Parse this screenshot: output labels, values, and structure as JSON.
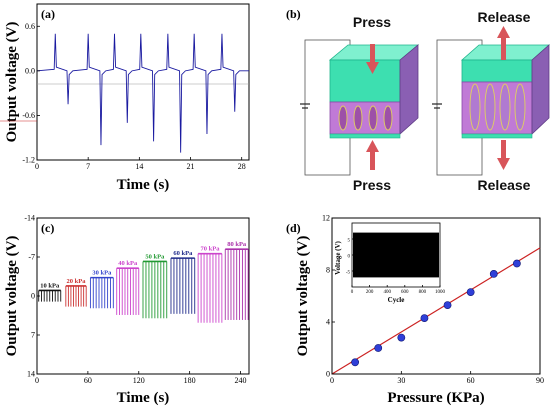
{
  "colors": {
    "trace": "#1a1aa0",
    "fit_line": "#cc2222",
    "marker": "#2f3fd8",
    "device_top": "#3ddfb0",
    "device_core": "#c07ad6",
    "arrow": "#d8555a"
  },
  "chart_data": [
    {
      "panel": "(a)",
      "type": "line",
      "ylabel": "Output voltage (V)",
      "xlabel": "Time (s)",
      "xlim": [
        0,
        29
      ],
      "ylim": [
        -1.2,
        0.9
      ],
      "xticks": [
        "0",
        "7",
        "14",
        "21",
        "28"
      ],
      "xtick_values": [
        0,
        7,
        14,
        21,
        28
      ],
      "yticks": [
        "0.6",
        "0.0",
        "-0.6",
        "-1.2"
      ],
      "ytick_values": [
        0.6,
        0.0,
        -0.6,
        -1.2
      ],
      "pulse_times": [
        2.5,
        7.0,
        10.6,
        14.2,
        17.9,
        21.5,
        25.3
      ],
      "positive_peaks": [
        0.5,
        0.5,
        0.5,
        0.5,
        0.5,
        0.5,
        0.5
      ],
      "negative_peaks": [
        -0.45,
        -1.0,
        -0.7,
        -0.95,
        -1.1,
        -0.85,
        -0.55
      ]
    },
    {
      "panel": "(c)",
      "type": "bar",
      "ylabel": "Output voltage (V)",
      "xlabel": "Time (s)",
      "xlim": [
        0,
        250
      ],
      "ylim": [
        14,
        -14
      ],
      "xticks": [
        "0",
        "60",
        "120",
        "180",
        "240"
      ],
      "xtick_values": [
        0,
        60,
        120,
        180,
        240
      ],
      "yticks": [
        "-14",
        "-7",
        "0",
        "7",
        "14"
      ],
      "ytick_values": [
        -14,
        -7,
        0,
        7,
        14
      ],
      "series": [
        {
          "name": "10 kPa",
          "t_start": 2,
          "t_end": 28,
          "peak": -1.0,
          "trough": 1.0,
          "color": "#111111"
        },
        {
          "name": "20 kPa",
          "t_start": 34,
          "t_end": 58,
          "peak": -1.8,
          "trough": 1.9,
          "color": "#cc3333"
        },
        {
          "name": "30 kPa",
          "t_start": 63,
          "t_end": 90,
          "peak": -3.3,
          "trough": 2.2,
          "color": "#3344cc"
        },
        {
          "name": "40 kPa",
          "t_start": 94,
          "t_end": 120,
          "peak": -5.0,
          "trough": 3.4,
          "color": "#cc44cc"
        },
        {
          "name": "50 kPa",
          "t_start": 125,
          "t_end": 153,
          "peak": -6.2,
          "trough": 4.0,
          "color": "#229933"
        },
        {
          "name": "60 kPa",
          "t_start": 158,
          "t_end": 186,
          "peak": -6.8,
          "trough": 3.2,
          "color": "#1f2a8a"
        },
        {
          "name": "70 kPa",
          "t_start": 190,
          "t_end": 218,
          "peak": -7.6,
          "trough": 4.8,
          "color": "#cc44cc"
        },
        {
          "name": "80 kPa",
          "t_start": 222,
          "t_end": 249,
          "peak": -8.4,
          "trough": 4.3,
          "color": "#aa33aa"
        }
      ]
    },
    {
      "panel": "(d)",
      "type": "scatter",
      "ylabel": "Output voltage (V)",
      "xlabel": "Pressure (KPa)",
      "xlim": [
        0,
        90
      ],
      "ylim": [
        0,
        12
      ],
      "xticks": [
        "0",
        "30",
        "60",
        "90"
      ],
      "xtick_values": [
        0,
        30,
        60,
        90
      ],
      "yticks": [
        "0",
        "4",
        "8",
        "12"
      ],
      "ytick_values": [
        0,
        4,
        8,
        12
      ],
      "x": [
        10,
        20,
        30,
        40,
        50,
        60,
        70,
        80
      ],
      "y": [
        0.9,
        2.0,
        2.8,
        4.3,
        5.3,
        6.3,
        7.7,
        8.5
      ],
      "fit": {
        "x0": 0,
        "y0": 0.0,
        "x1": 90,
        "y1": 9.7
      }
    },
    {
      "panel": "(d) inset",
      "type": "bar",
      "ylabel": "Voltage (V)",
      "xlabel": "Cycle",
      "xlim": [
        0,
        1000
      ],
      "ylim": [
        -10,
        10
      ],
      "xticks": [
        "0",
        "200",
        "400",
        "600",
        "800",
        "1000"
      ],
      "xtick_values": [
        0,
        200,
        400,
        600,
        800,
        1000
      ],
      "yticks": [
        "5",
        "0",
        "-5"
      ],
      "ytick_values": [
        5,
        0,
        -5
      ],
      "band": [
        -7,
        7
      ]
    }
  ],
  "panel_b": {
    "label": "(b)",
    "left_top": "Press",
    "left_bottom": "Press",
    "right_top": "Release",
    "right_bottom": "Release"
  }
}
